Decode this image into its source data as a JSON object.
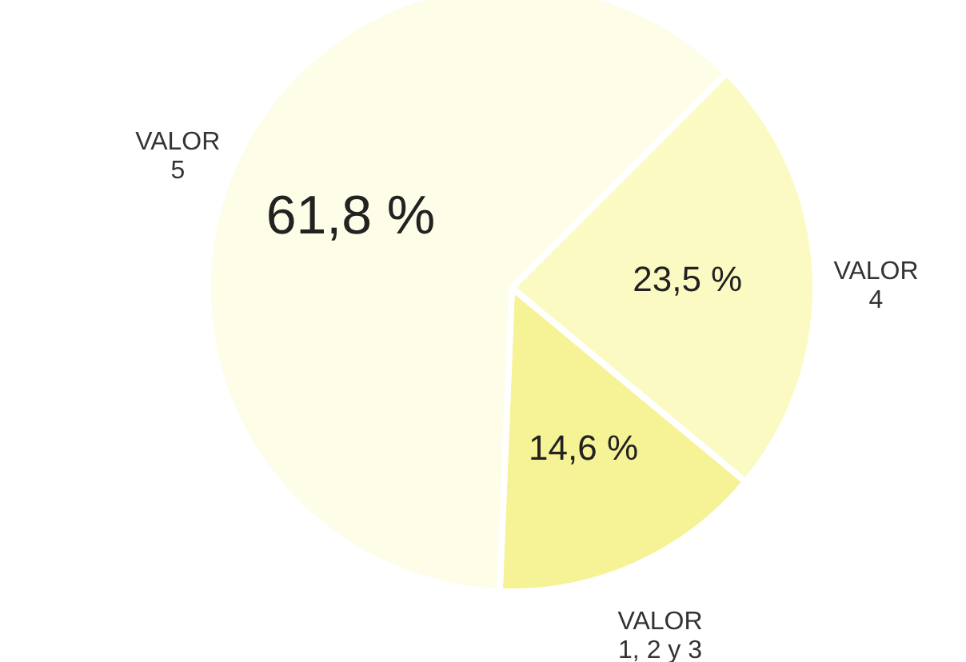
{
  "chart_data": {
    "type": "pie",
    "categories": [
      "VALOR 4",
      "VALOR 1, 2 y 3",
      "VALOR 5"
    ],
    "values": [
      23.5,
      14.6,
      61.8
    ],
    "colors": [
      "#fbfac3",
      "#f6f396",
      "#fdfde8"
    ],
    "value_labels": [
      "23,5 %",
      "14,6 %",
      "61,8 %"
    ]
  }
}
